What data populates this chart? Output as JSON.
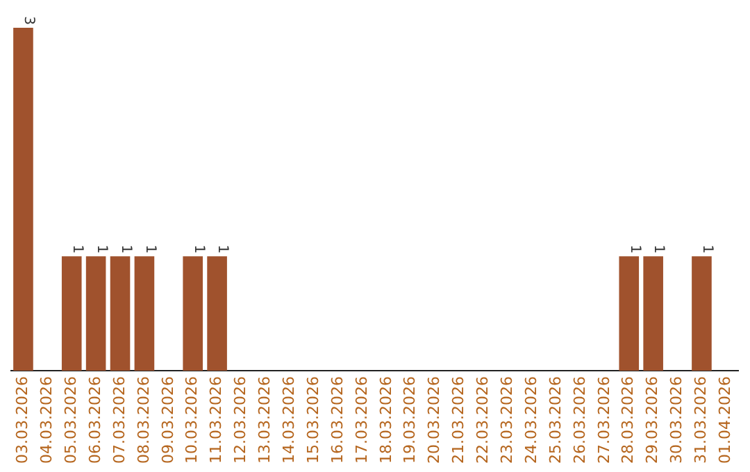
{
  "chart_data": {
    "type": "bar",
    "categories": [
      "03.03.2026",
      "04.03.2026",
      "05.03.2026",
      "06.03.2026",
      "07.03.2026",
      "08.03.2026",
      "09.03.2026",
      "10.03.2026",
      "11.03.2026",
      "12.03.2026",
      "13.03.2026",
      "14.03.2026",
      "15.03.2026",
      "16.03.2026",
      "17.03.2026",
      "18.03.2026",
      "19.03.2026",
      "20.03.2026",
      "21.03.2026",
      "22.03.2026",
      "23.03.2026",
      "24.03.2026",
      "25.03.2026",
      "26.03.2026",
      "27.03.2026",
      "28.03.2026",
      "29.03.2026",
      "30.03.2026",
      "31.03.2026",
      "01.04.2026"
    ],
    "values": [
      3,
      0,
      1,
      1,
      1,
      1,
      0,
      1,
      1,
      0,
      0,
      0,
      0,
      0,
      0,
      0,
      0,
      0,
      0,
      0,
      0,
      0,
      0,
      0,
      0,
      1,
      1,
      0,
      1,
      0
    ],
    "value_labels": [
      "3",
      null,
      "1",
      "1",
      "1",
      "1",
      null,
      "1",
      "1",
      null,
      null,
      null,
      null,
      null,
      null,
      null,
      null,
      null,
      null,
      null,
      null,
      null,
      null,
      null,
      null,
      "1",
      "1",
      null,
      "1",
      null
    ],
    "color": "#a0522d",
    "grid": false,
    "legend": false
  }
}
